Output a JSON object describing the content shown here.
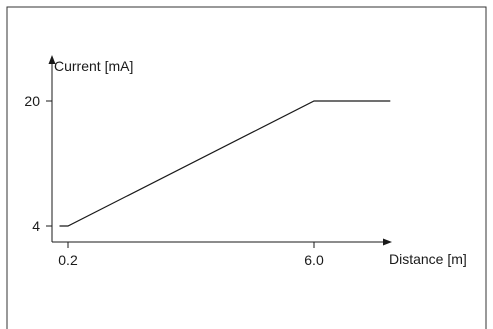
{
  "chart_data": {
    "type": "line",
    "title": "",
    "ylabel": "Current [mA]",
    "xlabel": "Distance [m]",
    "x_ticks": [
      {
        "value": 0.2,
        "label": "0.2"
      },
      {
        "value": 6.0,
        "label": "6.0"
      }
    ],
    "y_ticks": [
      {
        "value": 4,
        "label": "4"
      },
      {
        "value": 20,
        "label": "20"
      }
    ],
    "series": [
      {
        "points": [
          {
            "x": 0.0,
            "y": 4
          },
          {
            "x": 0.2,
            "y": 4
          },
          {
            "x": 6.0,
            "y": 20
          },
          {
            "x": 7.8,
            "y": 20
          }
        ]
      }
    ],
    "grid": false,
    "colors": {
      "line": "#1a1a1a",
      "frame": "#333333"
    }
  }
}
